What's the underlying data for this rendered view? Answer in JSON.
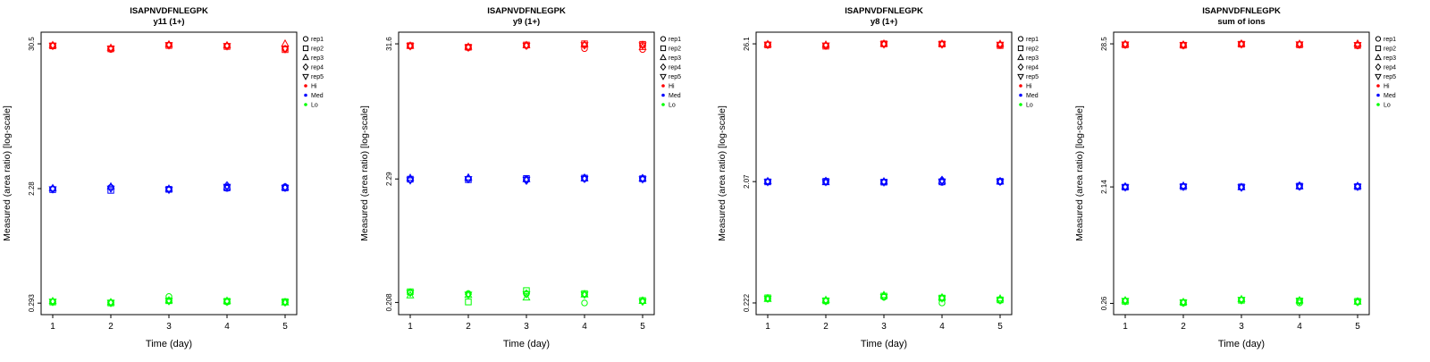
{
  "figure": {
    "xlabel": "Time (day)",
    "ylabel": "Measured (area ratio) [log-scale]",
    "xticks": [
      "1",
      "2",
      "3",
      "4",
      "5"
    ],
    "colors": {
      "Hi": "#FF0000",
      "Med": "#0000FF",
      "Lo": "#00FF00"
    },
    "legend": {
      "reps": [
        {
          "label": "rep1",
          "symbol": "circle"
        },
        {
          "label": "rep2",
          "symbol": "square"
        },
        {
          "label": "rep3",
          "symbol": "triangle-up"
        },
        {
          "label": "rep4",
          "symbol": "diamond"
        },
        {
          "label": "rep5",
          "symbol": "triangle-down"
        }
      ],
      "levels": [
        {
          "label": "Hi",
          "color": "#FF0000"
        },
        {
          "label": "Med",
          "color": "#0000FF"
        },
        {
          "label": "Lo",
          "color": "#00FF00"
        }
      ]
    }
  },
  "chart_data": [
    {
      "type": "scatter",
      "title": "ISAPNVDFNLEGPK",
      "subtitle": "y11 (1+)",
      "xlabel": "Time (day)",
      "ylabel": "Measured (area ratio) [log-scale]",
      "x": [
        1,
        2,
        3,
        4,
        5
      ],
      "yscale": "log",
      "ylim": [
        0.29,
        30.5
      ],
      "ytick_labels": [
        "30.5",
        "2.28",
        "0.293"
      ],
      "ytick_values": [
        30.5,
        2.28,
        0.293
      ],
      "series": [
        {
          "level": "Hi",
          "rep": "rep1",
          "values": [
            29.6,
            27.6,
            29.9,
            29.4,
            27.9
          ]
        },
        {
          "level": "Hi",
          "rep": "rep2",
          "values": [
            29.4,
            27.9,
            29.6,
            29.1,
            27.5
          ]
        },
        {
          "level": "Hi",
          "rep": "rep3",
          "values": [
            29.7,
            28.3,
            30.1,
            29.6,
            30.5
          ]
        },
        {
          "level": "Hi",
          "rep": "rep4",
          "values": [
            29.5,
            28.0,
            29.8,
            29.3,
            27.8
          ]
        },
        {
          "level": "Hi",
          "rep": "rep5",
          "values": [
            29.6,
            28.1,
            29.9,
            29.4,
            28.0
          ]
        },
        {
          "level": "Med",
          "rep": "rep1",
          "values": [
            2.27,
            2.33,
            2.26,
            2.29,
            2.36
          ]
        },
        {
          "level": "Med",
          "rep": "rep2",
          "values": [
            2.24,
            2.21,
            2.25,
            2.31,
            2.31
          ]
        },
        {
          "level": "Med",
          "rep": "rep3",
          "values": [
            2.29,
            2.36,
            2.27,
            2.34,
            2.33
          ]
        },
        {
          "level": "Med",
          "rep": "rep4",
          "values": [
            2.28,
            2.31,
            2.25,
            2.41,
            2.34
          ]
        },
        {
          "level": "Med",
          "rep": "rep5",
          "values": [
            2.26,
            2.29,
            2.24,
            2.36,
            2.32
          ]
        },
        {
          "level": "Lo",
          "rep": "rep1",
          "values": [
            0.301,
            0.296,
            0.33,
            0.299,
            0.297
          ]
        },
        {
          "level": "Lo",
          "rep": "rep2",
          "values": [
            0.299,
            0.294,
            0.306,
            0.303,
            0.301
          ]
        },
        {
          "level": "Lo",
          "rep": "rep3",
          "values": [
            0.303,
            0.297,
            0.307,
            0.305,
            0.296
          ]
        },
        {
          "level": "Lo",
          "rep": "rep4",
          "values": [
            0.3,
            0.295,
            0.305,
            0.301,
            0.298
          ]
        },
        {
          "level": "Lo",
          "rep": "rep5",
          "values": [
            0.302,
            0.296,
            0.306,
            0.302,
            0.299
          ]
        }
      ]
    },
    {
      "type": "scatter",
      "title": "ISAPNVDFNLEGPK",
      "subtitle": "y9 (1+)",
      "xlabel": "Time (day)",
      "ylabel": "Measured (area ratio) [log-scale]",
      "x": [
        1,
        2,
        3,
        4,
        5
      ],
      "yscale": "log",
      "ylim": [
        0.206,
        31.6
      ],
      "ytick_labels": [
        "31.6",
        "2.29",
        "0.208"
      ],
      "ytick_values": [
        31.6,
        2.29,
        0.208
      ],
      "series": [
        {
          "level": "Hi",
          "rep": "rep1",
          "values": [
            30.2,
            29.3,
            30.5,
            28.8,
            28.3
          ]
        },
        {
          "level": "Hi",
          "rep": "rep2",
          "values": [
            30.5,
            29.6,
            30.9,
            31.6,
            31.3
          ]
        },
        {
          "level": "Hi",
          "rep": "rep3",
          "values": [
            30.4,
            29.8,
            30.7,
            31.2,
            29.6
          ]
        },
        {
          "level": "Hi",
          "rep": "rep4",
          "values": [
            30.3,
            29.5,
            30.6,
            30.8,
            30.9
          ]
        },
        {
          "level": "Hi",
          "rep": "rep5",
          "values": [
            30.4,
            29.6,
            30.6,
            30.9,
            30.8
          ]
        },
        {
          "level": "Med",
          "rep": "rep1",
          "values": [
            2.27,
            2.3,
            2.28,
            2.3,
            2.29
          ]
        },
        {
          "level": "Med",
          "rep": "rep2",
          "values": [
            2.28,
            2.26,
            2.31,
            2.33,
            2.3
          ]
        },
        {
          "level": "Med",
          "rep": "rep3",
          "values": [
            2.33,
            2.35,
            2.27,
            2.31,
            2.31
          ]
        },
        {
          "level": "Med",
          "rep": "rep4",
          "values": [
            2.25,
            2.31,
            2.22,
            2.34,
            2.32
          ]
        },
        {
          "level": "Med",
          "rep": "rep5",
          "values": [
            2.24,
            2.29,
            2.26,
            2.3,
            2.28
          ]
        },
        {
          "level": "Lo",
          "rep": "rep1",
          "values": [
            0.253,
            0.247,
            0.246,
            0.206,
            0.213
          ]
        },
        {
          "level": "Lo",
          "rep": "rep2",
          "values": [
            0.256,
            0.21,
            0.262,
            0.247,
            0.216
          ]
        },
        {
          "level": "Lo",
          "rep": "rep3",
          "values": [
            0.238,
            0.24,
            0.228,
            0.242,
            0.214
          ]
        },
        {
          "level": "Lo",
          "rep": "rep4",
          "values": [
            0.252,
            0.244,
            0.247,
            0.244,
            0.215
          ]
        },
        {
          "level": "Lo",
          "rep": "rep5",
          "values": [
            0.251,
            0.243,
            0.245,
            0.243,
            0.212
          ]
        }
      ]
    },
    {
      "type": "scatter",
      "title": "ISAPNVDFNLEGPK",
      "subtitle": "y8 (1+)",
      "xlabel": "Time (day)",
      "ylabel": "Measured (area ratio) [log-scale]",
      "x": [
        1,
        2,
        3,
        4,
        5
      ],
      "yscale": "log",
      "ylim": [
        0.22,
        26.1
      ],
      "ytick_labels": [
        "26.1",
        "2.07",
        "0.222"
      ],
      "ytick_values": [
        26.1,
        2.07,
        0.222
      ],
      "series": [
        {
          "level": "Hi",
          "rep": "rep1",
          "values": [
            25.8,
            25.2,
            26.0,
            25.9,
            25.5
          ]
        },
        {
          "level": "Hi",
          "rep": "rep2",
          "values": [
            25.6,
            25.0,
            26.1,
            26.0,
            25.3
          ]
        },
        {
          "level": "Hi",
          "rep": "rep3",
          "values": [
            25.9,
            25.6,
            26.1,
            26.1,
            26.0
          ]
        },
        {
          "level": "Hi",
          "rep": "rep4",
          "values": [
            25.7,
            25.3,
            26.0,
            25.9,
            25.7
          ]
        },
        {
          "level": "Hi",
          "rep": "rep5",
          "values": [
            25.8,
            25.4,
            26.0,
            26.0,
            25.8
          ]
        },
        {
          "level": "Med",
          "rep": "rep1",
          "values": [
            2.07,
            2.05,
            2.06,
            2.04,
            2.06
          ]
        },
        {
          "level": "Med",
          "rep": "rep2",
          "values": [
            2.06,
            2.08,
            2.05,
            2.06,
            2.08
          ]
        },
        {
          "level": "Med",
          "rep": "rep3",
          "values": [
            2.08,
            2.04,
            2.07,
            2.09,
            2.07
          ]
        },
        {
          "level": "Med",
          "rep": "rep4",
          "values": [
            2.07,
            2.09,
            2.06,
            2.13,
            2.08
          ]
        },
        {
          "level": "Med",
          "rep": "rep5",
          "values": [
            2.06,
            2.06,
            2.05,
            2.08,
            2.07
          ]
        },
        {
          "level": "Lo",
          "rep": "rep1",
          "values": [
            0.24,
            0.229,
            0.247,
            0.222,
            0.232
          ]
        },
        {
          "level": "Lo",
          "rep": "rep2",
          "values": [
            0.244,
            0.231,
            0.252,
            0.243,
            0.235
          ]
        },
        {
          "level": "Lo",
          "rep": "rep3",
          "values": [
            0.238,
            0.234,
            0.256,
            0.245,
            0.24
          ]
        },
        {
          "level": "Lo",
          "rep": "rep4",
          "values": [
            0.242,
            0.23,
            0.25,
            0.244,
            0.236
          ]
        },
        {
          "level": "Lo",
          "rep": "rep5",
          "values": [
            0.241,
            0.232,
            0.249,
            0.242,
            0.234
          ]
        }
      ]
    },
    {
      "type": "scatter",
      "title": "ISAPNVDFNLEGPK",
      "subtitle": "sum of ions",
      "xlabel": "Time (day)",
      "ylabel": "Measured (area ratio) [log-scale]",
      "x": [
        1,
        2,
        3,
        4,
        5
      ],
      "yscale": "log",
      "ylim": [
        0.26,
        28.5
      ],
      "ytick_labels": [
        "28.5",
        "2.14",
        "0.26"
      ],
      "ytick_values": [
        28.5,
        2.14,
        0.26
      ],
      "series": [
        {
          "level": "Hi",
          "rep": "rep1",
          "values": [
            28.2,
            27.6,
            28.4,
            28.2,
            27.5
          ]
        },
        {
          "level": "Hi",
          "rep": "rep2",
          "values": [
            28.0,
            27.8,
            28.3,
            28.0,
            27.7
          ]
        },
        {
          "level": "Hi",
          "rep": "rep3",
          "values": [
            28.3,
            28.0,
            28.5,
            28.4,
            28.5
          ]
        },
        {
          "level": "Hi",
          "rep": "rep4",
          "values": [
            28.1,
            27.9,
            28.4,
            28.2,
            27.9
          ]
        },
        {
          "level": "Hi",
          "rep": "rep5",
          "values": [
            28.2,
            27.9,
            28.4,
            28.3,
            28.0
          ]
        },
        {
          "level": "Med",
          "rep": "rep1",
          "values": [
            2.14,
            2.16,
            2.13,
            2.15,
            2.16
          ]
        },
        {
          "level": "Med",
          "rep": "rep2",
          "values": [
            2.13,
            2.15,
            2.14,
            2.17,
            2.15
          ]
        },
        {
          "level": "Med",
          "rep": "rep3",
          "values": [
            2.15,
            2.18,
            2.13,
            2.16,
            2.17
          ]
        },
        {
          "level": "Med",
          "rep": "rep4",
          "values": [
            2.14,
            2.16,
            2.12,
            2.19,
            2.16
          ]
        },
        {
          "level": "Med",
          "rep": "rep5",
          "values": [
            2.13,
            2.15,
            2.13,
            2.16,
            2.15
          ]
        },
        {
          "level": "Lo",
          "rep": "rep1",
          "values": [
            0.272,
            0.262,
            0.277,
            0.262,
            0.266
          ]
        },
        {
          "level": "Lo",
          "rep": "rep2",
          "values": [
            0.27,
            0.264,
            0.275,
            0.272,
            0.27
          ]
        },
        {
          "level": "Lo",
          "rep": "rep3",
          "values": [
            0.274,
            0.266,
            0.28,
            0.274,
            0.268
          ]
        },
        {
          "level": "Lo",
          "rep": "rep4",
          "values": [
            0.271,
            0.263,
            0.276,
            0.271,
            0.269
          ]
        },
        {
          "level": "Lo",
          "rep": "rep5",
          "values": [
            0.273,
            0.265,
            0.278,
            0.272,
            0.267
          ]
        }
      ]
    }
  ]
}
